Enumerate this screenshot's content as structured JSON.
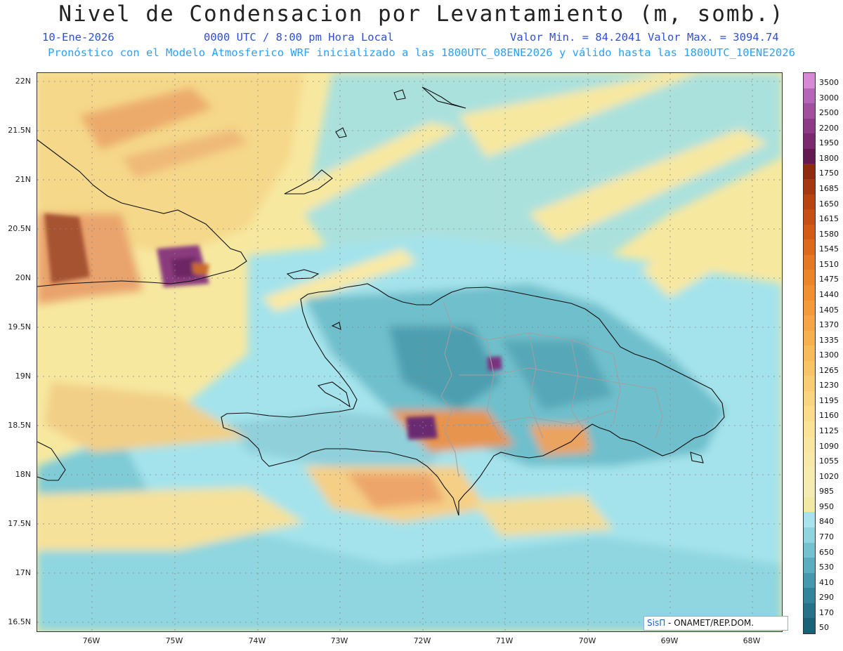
{
  "header": {
    "title": "Nivel de Condensacion por Levantamiento (m, somb.)",
    "date": "10-Ene-2026",
    "time": "0000 UTC / 8:00 pm Hora Local",
    "min_max": "Valor Min. = 84.2041  Valor Max. = 3094.74",
    "model_info": "Pronóstico con el Modelo Atmosferico WRF inicializado a las 1800UTC_08ENE2026 y válido hasta las  1800UTC_10ENE2026"
  },
  "axes": {
    "latitudes": [
      "22N",
      "21.5N",
      "21N",
      "20.5N",
      "20N",
      "19.5N",
      "19N",
      "18.5N",
      "18N",
      "17.5N",
      "17N",
      "16.5N"
    ],
    "longitudes": [
      "76W",
      "75W",
      "74W",
      "73W",
      "72W",
      "71W",
      "70W",
      "69W",
      "68W"
    ]
  },
  "colorbar": {
    "levels": [
      "3500",
      "3000",
      "2500",
      "2200",
      "1950",
      "1800",
      "1750",
      "1685",
      "1650",
      "1615",
      "1580",
      "1545",
      "1510",
      "1475",
      "1440",
      "1405",
      "1370",
      "1335",
      "1300",
      "1265",
      "1230",
      "1195",
      "1160",
      "1125",
      "1090",
      "1055",
      "1020",
      "985",
      "950",
      "840",
      "770",
      "650",
      "530",
      "410",
      "290",
      "170",
      "50"
    ],
    "colors": [
      "#d68ad6",
      "#b666b8",
      "#a24f9e",
      "#8d3b86",
      "#7a2a6e",
      "#621a50",
      "#8f2a10",
      "#a4380f",
      "#b8440f",
      "#c65013",
      "#d25c16",
      "#dc6a1c",
      "#e57822",
      "#ec8429",
      "#f09030",
      "#f39b3a",
      "#f5a545",
      "#f7b050",
      "#f8ba5c",
      "#f9c468",
      "#f9cd74",
      "#fad580",
      "#fadc8b",
      "#fae296",
      "#f9e6a0",
      "#f8e9a8",
      "#f7ebb0",
      "#f5ecb4",
      "#f3e8a6",
      "#a8e2ea",
      "#8fd4de",
      "#74c2cf",
      "#5aaec0",
      "#4599ae",
      "#33859c",
      "#257289",
      "#1b6178"
    ]
  },
  "credit": {
    "brand": "SisΠ",
    "org": " - ONAMET/REP.DOM."
  }
}
